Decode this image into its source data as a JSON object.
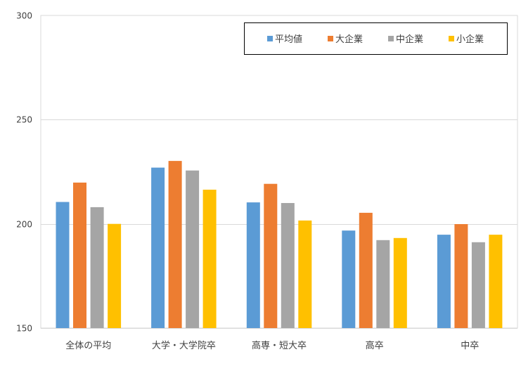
{
  "chart_data": {
    "type": "bar",
    "title": "",
    "xlabel": "",
    "ylabel": "",
    "ylim": [
      150,
      300
    ],
    "yticks": [
      150,
      200,
      250,
      300
    ],
    "grid": true,
    "legend_position": "top-right",
    "categories": [
      "全体の平均",
      "大学・大学院卒",
      "高専・短大卒",
      "高卒",
      "中卒"
    ],
    "series": [
      {
        "name": "平均値",
        "color": "#5B9BD5",
        "values": [
          210.5,
          227.0,
          210.3,
          196.8,
          194.8
        ]
      },
      {
        "name": "大企業",
        "color": "#ED7D31",
        "values": [
          219.8,
          230.2,
          219.2,
          205.3,
          199.9
        ]
      },
      {
        "name": "中企業",
        "color": "#A5A5A5",
        "values": [
          208.0,
          225.6,
          210.0,
          192.2,
          191.2
        ]
      },
      {
        "name": "小企業",
        "color": "#FFC000",
        "values": [
          200.0,
          216.4,
          201.6,
          193.2,
          194.8
        ]
      }
    ]
  }
}
